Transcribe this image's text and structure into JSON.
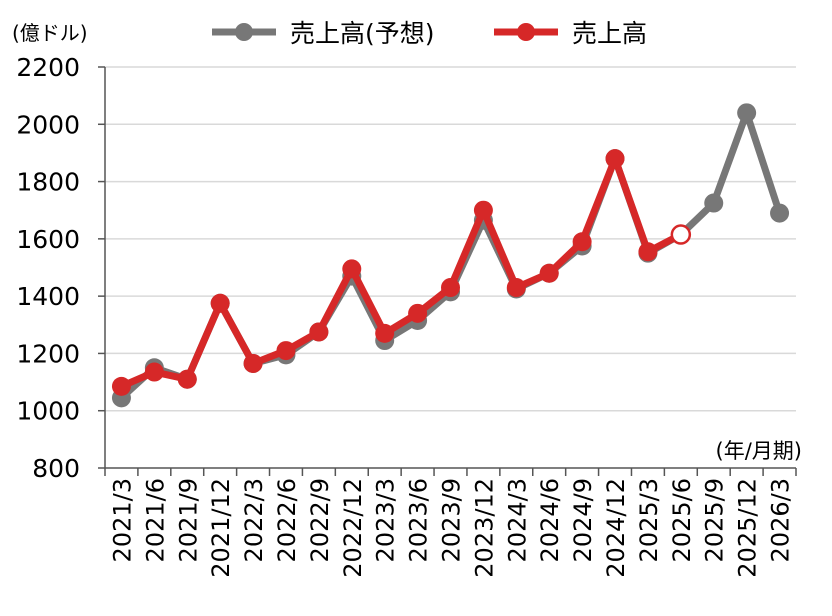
{
  "chart_data": {
    "type": "line",
    "ylabel": "(億ドル)",
    "xlabel": "(年/月期)",
    "ylim": [
      800,
      2200
    ],
    "yticks": [
      800,
      1000,
      1200,
      1400,
      1600,
      1800,
      2000,
      2200
    ],
    "grid": "horizontal",
    "legend_position": "top",
    "categories": [
      "2021/3",
      "2021/6",
      "2021/9",
      "2021/12",
      "2022/3",
      "2022/6",
      "2022/9",
      "2022/12",
      "2023/3",
      "2023/6",
      "2023/9",
      "2023/12",
      "2024/3",
      "2024/6",
      "2024/9",
      "2024/12",
      "2025/3",
      "2025/6",
      "2025/9",
      "2025/12",
      "2026/3"
    ],
    "series": [
      {
        "name": "売上高(予想)",
        "color": "#777777",
        "values": [
          1045,
          1150,
          1110,
          1375,
          1165,
          1195,
          1275,
          1470,
          1245,
          1315,
          1415,
          1665,
          1425,
          1480,
          1575,
          1880,
          1550,
          1615,
          1725,
          2040,
          1690
        ]
      },
      {
        "name": "売上高",
        "color": "#d62828",
        "values": [
          1085,
          1135,
          1110,
          1375,
          1165,
          1210,
          1275,
          1495,
          1270,
          1340,
          1430,
          1700,
          1430,
          1480,
          1590,
          1880,
          1555,
          1615,
          null,
          null,
          null
        ],
        "hollow_last": true
      }
    ]
  }
}
